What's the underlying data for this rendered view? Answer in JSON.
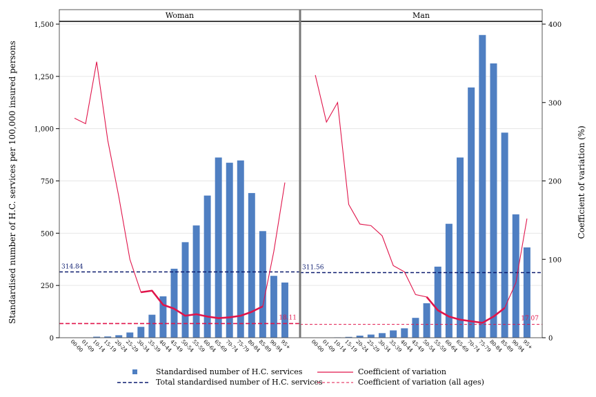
{
  "chart_data": {
    "type": "bar",
    "panels": [
      {
        "title": "Woman",
        "categories": [
          "00-00",
          "01-09",
          "10-14",
          "15-19",
          "20-24",
          "25-29",
          "30-34",
          "35-39",
          "40-44",
          "45-49",
          "50-54",
          "55-59",
          "60-64",
          "65-69",
          "70-74",
          "75-79",
          "80-84",
          "85-89",
          "90-94",
          "95+"
        ],
        "bars": [
          0,
          0,
          5,
          6,
          12,
          25,
          52,
          110,
          198,
          330,
          457,
          537,
          680,
          862,
          837,
          848,
          692,
          510,
          296,
          264
        ],
        "cv_thin": [
          280,
          273,
          352,
          252,
          180,
          100,
          58,
          60,
          42,
          37,
          28,
          30,
          27,
          25,
          26,
          28,
          33,
          40,
          110,
          198
        ],
        "cv_thick_range": [
          6,
          17
        ],
        "total_label": "314.84",
        "total_value": 314.84,
        "cv_all_label": "18.11",
        "cv_all_value": 18.11
      },
      {
        "title": "Man",
        "categories": [
          "00-00",
          "01-09",
          "10-14",
          "15-19",
          "20-24",
          "25-29",
          "30-34",
          "35-39",
          "40-44",
          "45-49",
          "50-54",
          "55-59",
          "60-64",
          "65-69",
          "70-74",
          "75-79",
          "80-84",
          "85-89",
          "90-94",
          "95+"
        ],
        "bars": [
          0,
          0,
          2,
          4,
          10,
          15,
          22,
          35,
          45,
          95,
          165,
          340,
          545,
          862,
          1197,
          1448,
          1312,
          981,
          590,
          432
        ],
        "cv_thin": [
          335,
          275,
          300,
          170,
          145,
          143,
          130,
          92,
          84,
          55,
          52,
          35,
          27,
          23,
          21,
          19,
          27,
          38,
          70,
          152
        ],
        "cv_thick_range": [
          10,
          17
        ],
        "total_label": "311.56",
        "total_value": 311.56,
        "cv_all_label": "17.07",
        "cv_all_value": 17.07
      }
    ],
    "ylabel": "Standardised number of H.C. services per 100,000 insured persons",
    "y2label": "Coefficient of variation (%)",
    "ylim": [
      0,
      1500
    ],
    "y2lim": [
      0,
      400
    ],
    "yticks": [
      "0",
      "250",
      "500",
      "750",
      "1,000",
      "1,250",
      "1,500"
    ],
    "y2ticks": [
      "0",
      "100",
      "200",
      "300",
      "400"
    ],
    "legend": {
      "bars": "Standardised number of H.C. services",
      "cv": "Coefficient of variation",
      "total": "Total standardised number of H.C. services",
      "cv_all": "Coefficient of variation (all ages)"
    },
    "colors": {
      "bar": "#4f7fc2",
      "cv": "#e0144a",
      "total": "#0a1a6e",
      "cv_all": "#e0144a"
    },
    "grid": true,
    "legend_position": "bottom"
  }
}
